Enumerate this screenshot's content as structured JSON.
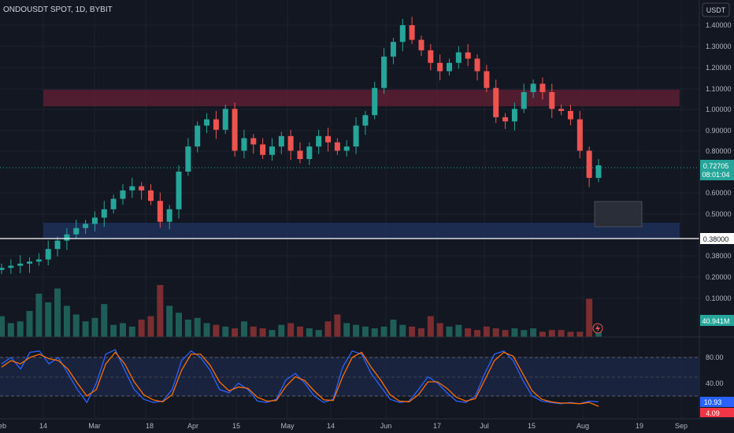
{
  "header": {
    "title": "ONDOUSDT SPOT, 1D, BYBIT",
    "currency_button": "USDT"
  },
  "price_scale": [
    "1.40000",
    "1.30000",
    "1.20000",
    "1.10000",
    "1.00000",
    "0.90000",
    "0.80000",
    "0.60000",
    "0.50000",
    "0.38000"
  ],
  "price_badges": {
    "last_price": "0.72705",
    "countdown": "08:01:04",
    "hline_label": "0.38000"
  },
  "volume_scale": [
    "0.20000",
    "0.10000"
  ],
  "volume_badge": "40.941M",
  "stoch_scale": [
    "80.00",
    "40.00"
  ],
  "stoch_badges": {
    "k": "10.93",
    "d": "4.09"
  },
  "time_axis": [
    "eb",
    "14",
    "Mar",
    "18",
    "Apr",
    "15",
    "May",
    "14",
    "Jun",
    "17",
    "Jul",
    "15",
    "Aug",
    "19",
    "Sep"
  ],
  "colors": {
    "up": "#26a69a",
    "down": "#ef5350",
    "resistance_zone": "#5c1f33",
    "support_zone": "#1e2d55",
    "k_line": "#2962ff",
    "d_line": "#ff6d00",
    "background": "#131722"
  },
  "chart_data": [
    {
      "type": "candlestick",
      "title": "ONDOUSDT SPOT, 1D, BYBIT",
      "ylim": [
        0.37,
        1.46
      ],
      "x_range": [
        "Feb",
        "Sep"
      ],
      "zones": [
        {
          "name": "resistance",
          "y": [
            1.02,
            1.09
          ]
        },
        {
          "name": "support",
          "y": [
            0.39,
            0.46
          ]
        },
        {
          "name": "target-box",
          "y": [
            0.45,
            0.57
          ]
        }
      ],
      "horizontal_lines": [
        0.38
      ],
      "series": [
        {
          "close_approx": [
            0.24,
            0.25,
            0.26,
            0.27,
            0.28,
            0.33,
            0.37,
            0.4,
            0.43,
            0.45,
            0.48,
            0.52,
            0.57,
            0.61,
            0.63,
            0.61,
            0.56,
            0.46,
            0.52,
            0.7,
            0.82,
            0.92,
            0.95,
            0.9,
            1.0,
            0.8,
            0.86,
            0.83,
            0.78,
            0.82,
            0.87,
            0.8,
            0.76,
            0.82,
            0.87,
            0.84,
            0.8,
            0.82,
            0.92,
            0.97,
            1.1,
            1.25,
            1.32,
            1.4,
            1.33,
            1.28,
            1.22,
            1.18,
            1.22,
            1.27,
            1.24,
            1.18,
            1.1,
            0.96,
            0.94,
            1.0,
            1.08,
            1.12,
            1.08,
            1.0,
            0.99,
            0.95,
            0.8,
            0.67,
            0.73
          ]
        }
      ]
    },
    {
      "type": "bar",
      "name": "volume",
      "ylim": [
        0,
        0.42
      ],
      "values": [
        0.12,
        0.08,
        0.09,
        0.15,
        0.25,
        0.2,
        0.28,
        0.18,
        0.13,
        0.09,
        0.11,
        0.19,
        0.07,
        0.08,
        0.06,
        0.1,
        0.12,
        0.3,
        0.18,
        0.14,
        0.1,
        0.11,
        0.08,
        0.07,
        0.06,
        0.05,
        0.09,
        0.06,
        0.05,
        0.04,
        0.07,
        0.08,
        0.06,
        0.05,
        0.04,
        0.09,
        0.13,
        0.08,
        0.07,
        0.06,
        0.05,
        0.06,
        0.1,
        0.07,
        0.06,
        0.05,
        0.12,
        0.08,
        0.06,
        0.07,
        0.05,
        0.04,
        0.06,
        0.05,
        0.04,
        0.05,
        0.04,
        0.05,
        0.03,
        0.04,
        0.04,
        0.03,
        0.03,
        0.22,
        0.04
      ]
    },
    {
      "type": "line",
      "name": "stochastic",
      "ylim": [
        0,
        100
      ],
      "levels": [
        80,
        20
      ],
      "series": [
        {
          "name": "k",
          "values": [
            70,
            80,
            62,
            88,
            90,
            70,
            80,
            55,
            30,
            10,
            40,
            85,
            92,
            60,
            30,
            15,
            10,
            12,
            30,
            75,
            90,
            80,
            60,
            30,
            25,
            40,
            30,
            12,
            10,
            15,
            45,
            55,
            40,
            20,
            10,
            15,
            65,
            90,
            85,
            55,
            35,
            15,
            10,
            12,
            30,
            50,
            40,
            25,
            12,
            10,
            20,
            55,
            85,
            90,
            75,
            45,
            20,
            12,
            10,
            8,
            10,
            8,
            12,
            11
          ]
        },
        {
          "name": "d",
          "values": [
            65,
            75,
            70,
            80,
            85,
            78,
            75,
            62,
            40,
            20,
            30,
            70,
            88,
            70,
            42,
            22,
            14,
            11,
            22,
            60,
            85,
            85,
            68,
            42,
            28,
            34,
            32,
            18,
            12,
            13,
            35,
            50,
            44,
            28,
            14,
            13,
            50,
            80,
            88,
            65,
            45,
            22,
            12,
            11,
            22,
            42,
            42,
            32,
            18,
            12,
            16,
            45,
            75,
            88,
            82,
            55,
            28,
            15,
            11,
            9,
            9,
            8,
            10,
            4
          ]
        }
      ]
    }
  ]
}
